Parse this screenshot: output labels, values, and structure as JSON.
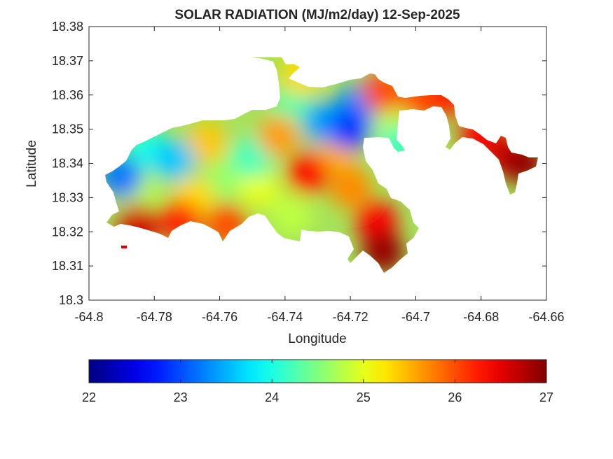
{
  "chart_data": {
    "type": "heatmap",
    "title": "SOLAR RADIATION (MJ/m2/day) 12-Sep-2025",
    "xlabel": "Longitude",
    "ylabel": "Latitude",
    "xlim": [
      -64.8,
      -64.66
    ],
    "ylim": [
      18.3,
      18.38
    ],
    "x_ticks": [
      -64.8,
      -64.78,
      -64.76,
      -64.74,
      -64.72,
      -64.7,
      -64.68,
      -64.66
    ],
    "x_tick_labels": [
      "-64.8",
      "-64.78",
      "-64.76",
      "-64.74",
      "-64.72",
      "-64.7",
      "-64.68",
      "-64.66"
    ],
    "y_ticks": [
      18.3,
      18.31,
      18.32,
      18.33,
      18.34,
      18.35,
      18.36,
      18.37,
      18.38
    ],
    "y_tick_labels": [
      "18.3",
      "18.31",
      "18.32",
      "18.33",
      "18.34",
      "18.35",
      "18.36",
      "18.37",
      "18.38"
    ],
    "grid": false,
    "colormap": "jet",
    "colorbar": {
      "location": "bottom",
      "range": [
        22,
        27
      ],
      "ticks": [
        22,
        23,
        24,
        25,
        26,
        27
      ],
      "tick_labels": [
        "22",
        "23",
        "24",
        "25",
        "26",
        "27"
      ]
    },
    "regions": [
      {
        "lon": -64.785,
        "lat": 18.322,
        "value": 26.6
      },
      {
        "lon": -64.772,
        "lat": 18.323,
        "value": 26.2
      },
      {
        "lon": -64.758,
        "lat": 18.322,
        "value": 26.0
      },
      {
        "lon": -64.79,
        "lat": 18.336,
        "value": 23.2
      },
      {
        "lon": -64.785,
        "lat": 18.332,
        "value": 24.8
      },
      {
        "lon": -64.782,
        "lat": 18.344,
        "value": 24.0
      },
      {
        "lon": -64.774,
        "lat": 18.341,
        "value": 23.6
      },
      {
        "lon": -64.768,
        "lat": 18.33,
        "value": 25.3
      },
      {
        "lon": -64.764,
        "lat": 18.346,
        "value": 25.4
      },
      {
        "lon": -64.758,
        "lat": 18.336,
        "value": 24.6
      },
      {
        "lon": -64.75,
        "lat": 18.342,
        "value": 24.2
      },
      {
        "lon": -64.748,
        "lat": 18.333,
        "value": 25.0
      },
      {
        "lon": -64.742,
        "lat": 18.348,
        "value": 25.6
      },
      {
        "lon": -64.738,
        "lat": 18.325,
        "value": 24.8
      },
      {
        "lon": -64.738,
        "lat": 18.356,
        "value": 24.3
      },
      {
        "lon": -64.735,
        "lat": 18.366,
        "value": 25.3
      },
      {
        "lon": -64.733,
        "lat": 18.337,
        "value": 26.3
      },
      {
        "lon": -64.728,
        "lat": 18.352,
        "value": 23.4
      },
      {
        "lon": -64.724,
        "lat": 18.344,
        "value": 25.5
      },
      {
        "lon": -64.72,
        "lat": 18.35,
        "value": 22.9
      },
      {
        "lon": -64.718,
        "lat": 18.357,
        "value": 23.3
      },
      {
        "lon": -64.72,
        "lat": 18.333,
        "value": 25.7
      },
      {
        "lon": -64.712,
        "lat": 18.323,
        "value": 26.4
      },
      {
        "lon": -64.71,
        "lat": 18.314,
        "value": 26.9
      },
      {
        "lon": -64.71,
        "lat": 18.361,
        "value": 26.0
      },
      {
        "lon": -64.708,
        "lat": 18.352,
        "value": 24.8
      },
      {
        "lon": -64.705,
        "lat": 18.345,
        "value": 24.2
      },
      {
        "lon": -64.698,
        "lat": 18.359,
        "value": 26.0
      },
      {
        "lon": -64.69,
        "lat": 18.36,
        "value": 26.2
      },
      {
        "lon": -64.68,
        "lat": 18.348,
        "value": 26.4
      },
      {
        "lon": -64.672,
        "lat": 18.342,
        "value": 26.6
      },
      {
        "lon": -64.667,
        "lat": 18.34,
        "value": 26.9
      }
    ]
  }
}
